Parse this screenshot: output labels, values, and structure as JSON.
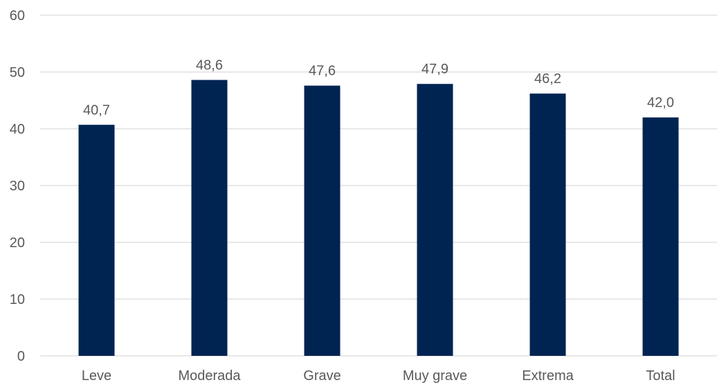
{
  "chart_data": {
    "type": "bar",
    "categories": [
      "Leve",
      "Moderada",
      "Grave",
      "Muy grave",
      "Extrema",
      "Total"
    ],
    "values": [
      40.7,
      48.6,
      47.6,
      47.9,
      46.2,
      42.0
    ],
    "value_labels": [
      "40,7",
      "48,6",
      "47,6",
      "47,9",
      "46,2",
      "42,0"
    ],
    "y_ticks": [
      0,
      10,
      20,
      30,
      40,
      50,
      60
    ],
    "ylim": [
      0,
      60
    ],
    "grid": true,
    "legend": "none",
    "bar_color": "#002452",
    "grid_color": "#d9d9d9",
    "text_color": "#595959"
  }
}
